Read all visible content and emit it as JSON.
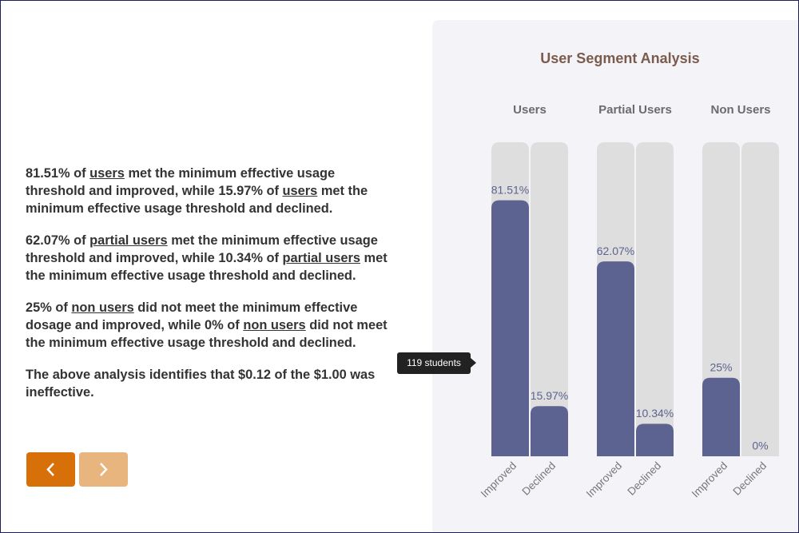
{
  "body": {
    "paragraphs": [
      [
        {
          "text": "81.51% of "
        },
        {
          "text": "users",
          "underline": true
        },
        {
          "text": " met the minimum effective usage threshold and improved, while 15.97% of "
        },
        {
          "text": "users",
          "underline": true
        },
        {
          "text": " met the minimum effective usage threshold and declined."
        }
      ],
      [
        {
          "text": "62.07% of "
        },
        {
          "text": "partial users",
          "underline": true
        },
        {
          "text": " met the minimum effective usage threshold and improved, while 10.34% of "
        },
        {
          "text": "partial users",
          "underline": true
        },
        {
          "text": " met the minimum effective usage threshold and declined."
        }
      ],
      [
        {
          "text": "25% of "
        },
        {
          "text": "non users",
          "underline": true
        },
        {
          "text": " did not meet the minimum effective dosage and improved, while 0% of "
        },
        {
          "text": "non users",
          "underline": true
        },
        {
          "text": " did not meet the minimum effective usage threshold and declined."
        }
      ],
      [
        {
          "text": "The above analysis identifies that $0.12 of the $1.00 was ineffective."
        }
      ]
    ]
  },
  "tooltip": "119 students",
  "chart_data": {
    "type": "bar",
    "title": "User Segment Analysis",
    "categories": [
      "Users",
      "Partial Users",
      "Non Users"
    ],
    "series": [
      {
        "name": "Improved",
        "color": "#5c6391",
        "values": [
          81.51,
          62.07,
          25
        ],
        "value_labels": [
          "81.51%",
          "62.07%",
          "25%"
        ]
      },
      {
        "name": "Declined",
        "color": "#5c6391",
        "values": [
          15.97,
          10.34,
          0
        ],
        "value_labels": [
          "15.97%",
          "10.34%",
          "0%"
        ]
      }
    ],
    "ylim": [
      0,
      100
    ]
  }
}
